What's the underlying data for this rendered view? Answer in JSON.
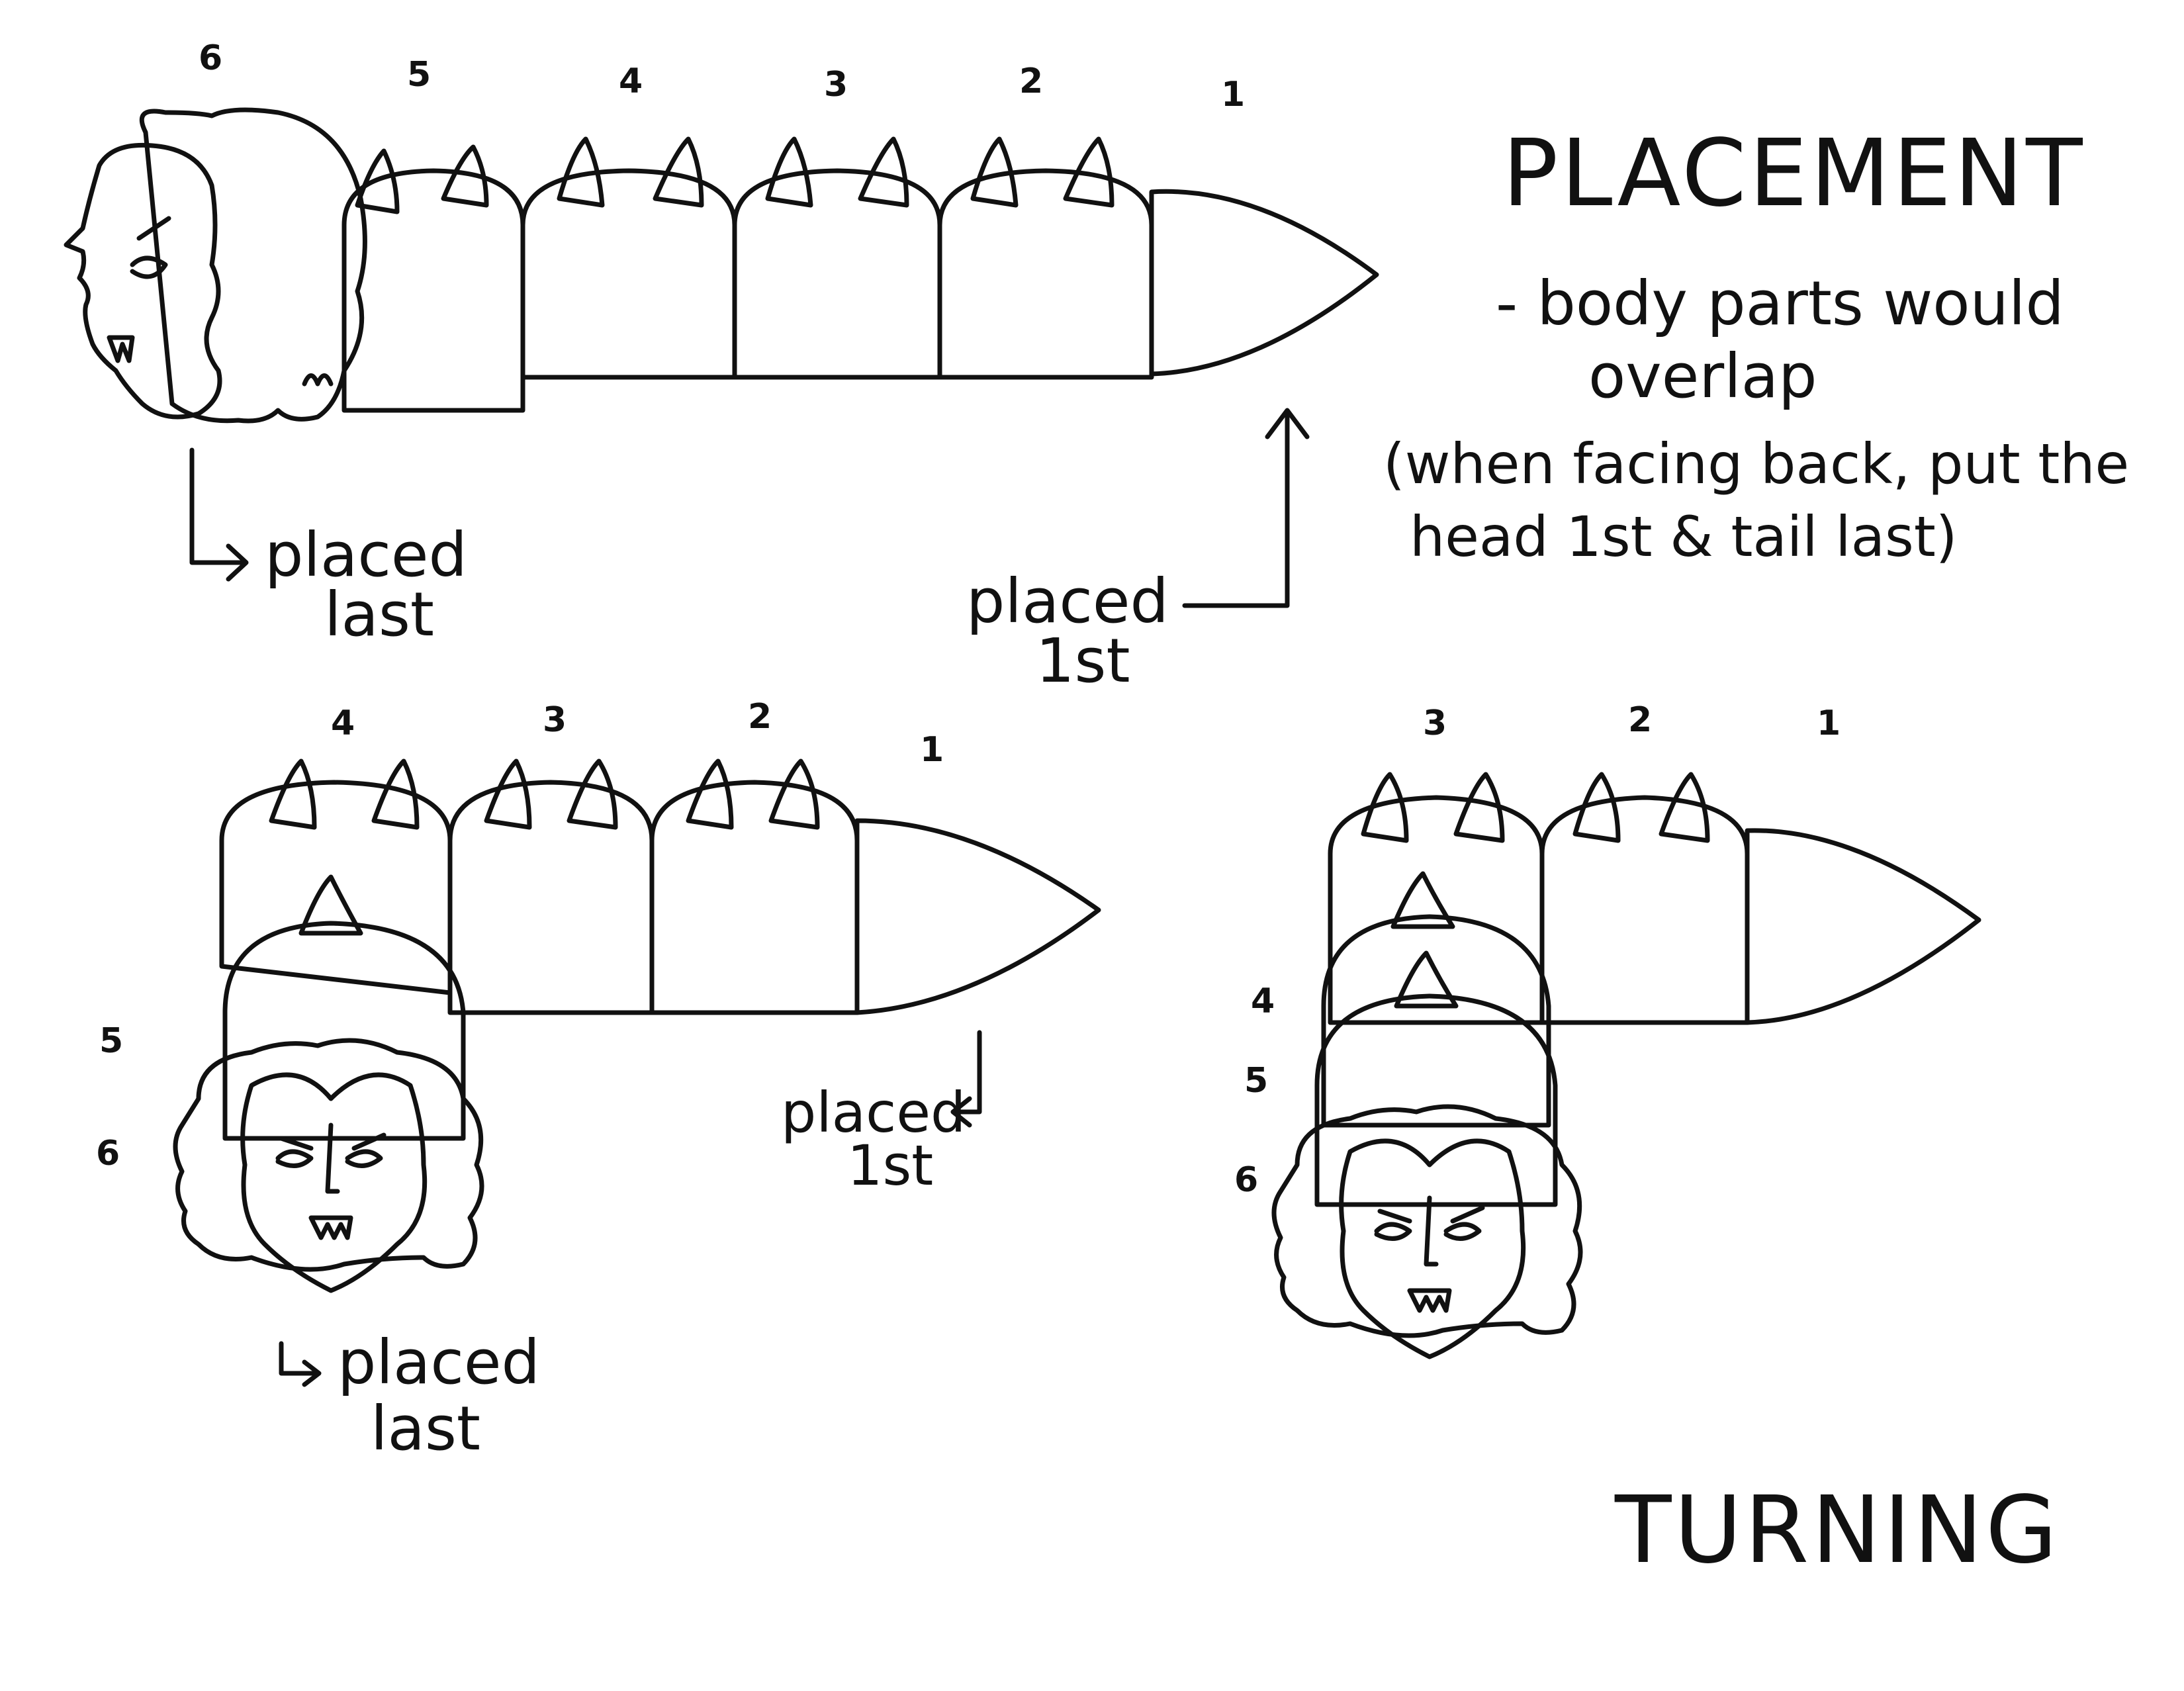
{
  "colors": {
    "light_segment": "#c4c4c4",
    "dark_segment": "#3a3a3a",
    "hair": "#bdbdbd",
    "spike": "#ffffff",
    "ink": "#111111",
    "face": "#ffffff"
  },
  "placement": {
    "title": "PLACEMENT",
    "note_line1": "- body parts would",
    "note_line2": "overlap",
    "note_line3": "(when facing back, put the",
    "note_line4": "head 1st & tail last)",
    "numbers": [
      "6",
      "5",
      "4",
      "3",
      "2",
      "1"
    ],
    "label_last_1": "placed",
    "label_last_2": "last",
    "label_first_1": "placed",
    "label_first_2": "1st"
  },
  "turning": {
    "title": "TURNING",
    "left_top_numbers": [
      "4",
      "3",
      "2",
      "1"
    ],
    "left_side_numbers": [
      "5",
      "6"
    ],
    "left_first_1": "placed",
    "left_first_2": "1st",
    "left_last_1": "placed",
    "left_last_2": "last",
    "right_top_numbers": [
      "3",
      "2",
      "1"
    ],
    "right_side_numbers": [
      "4",
      "5",
      "6"
    ]
  }
}
